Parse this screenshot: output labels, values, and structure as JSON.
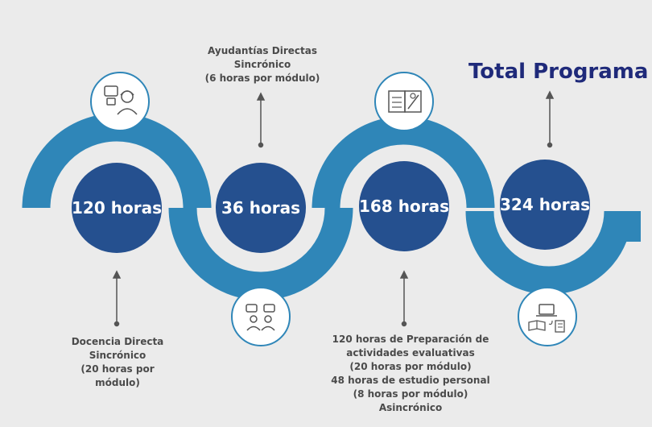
{
  "title": "Total Programa",
  "steps": [
    {
      "hours": "120 horas"
    },
    {
      "hours": "36 horas"
    },
    {
      "hours": "168 horas"
    },
    {
      "hours": "324 horas"
    }
  ],
  "notes": {
    "docencia": [
      "Docencia Directa",
      "Sincrónico",
      "(20 horas por",
      "módulo)"
    ],
    "ayudantias": [
      "Ayudantías Directas",
      "Sincrónico",
      "(6 horas por módulo)"
    ],
    "preparacion": [
      "120 horas de Preparación de",
      "actividades evaluativas",
      "(20 horas por módulo)",
      "48 horas de estudio personal",
      "(8 horas por módulo)",
      "Asincrónico"
    ]
  },
  "icons": [
    "teacher-headset-icon",
    "group-chat-icon",
    "book-document-icon",
    "laptop-book-icon"
  ],
  "colors": {
    "wave": "#2f86b8",
    "circle_dark": "#25508f",
    "title": "#1f2a7a",
    "text": "#4a4a4a",
    "background": "#ebebeb"
  }
}
